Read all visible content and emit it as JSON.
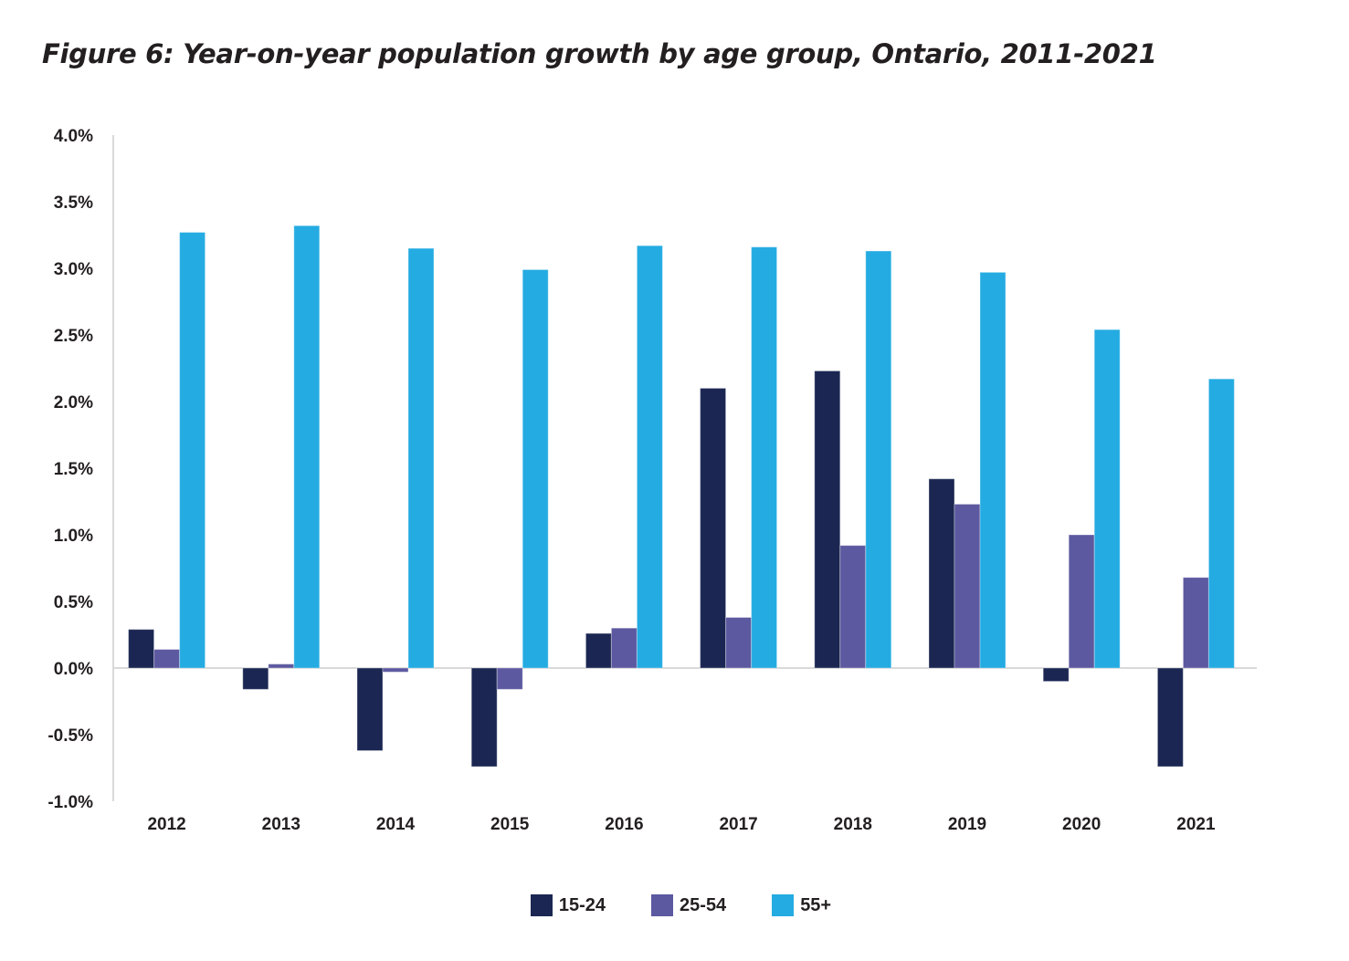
{
  "chart_data": {
    "type": "bar",
    "title": "Figure 6: Year-on-year population growth by age group, Ontario, 2011-2021",
    "xlabel": "",
    "ylabel": "",
    "ylim": [
      -1.0,
      4.0
    ],
    "yticks": [
      -1.0,
      -0.5,
      0.0,
      0.5,
      1.0,
      1.5,
      2.0,
      2.5,
      3.0,
      3.5,
      4.0
    ],
    "ytick_labels": [
      "-1.0%",
      "-0.5%",
      "0.0%",
      "0.5%",
      "1.0%",
      "1.5%",
      "2.0%",
      "2.5%",
      "3.0%",
      "3.5%",
      "4.0%"
    ],
    "categories": [
      "2012",
      "2013",
      "2014",
      "2015",
      "2016",
      "2017",
      "2018",
      "2019",
      "2020",
      "2021"
    ],
    "series": [
      {
        "name": "15-24",
        "color": "#1b2752",
        "values": [
          0.29,
          -0.16,
          -0.62,
          -0.74,
          0.26,
          2.1,
          2.23,
          1.42,
          -0.1,
          -0.74
        ]
      },
      {
        "name": "25-54",
        "color": "#5c59a0",
        "values": [
          0.14,
          0.03,
          -0.03,
          -0.16,
          0.3,
          0.38,
          0.92,
          1.23,
          1.0,
          0.68
        ]
      },
      {
        "name": "55+",
        "color": "#24abe2",
        "values": [
          3.27,
          3.32,
          3.15,
          2.99,
          3.17,
          3.16,
          3.13,
          2.97,
          2.54,
          2.17
        ]
      }
    ],
    "grid": false,
    "legend_position": "bottom-center",
    "unit": "%"
  }
}
